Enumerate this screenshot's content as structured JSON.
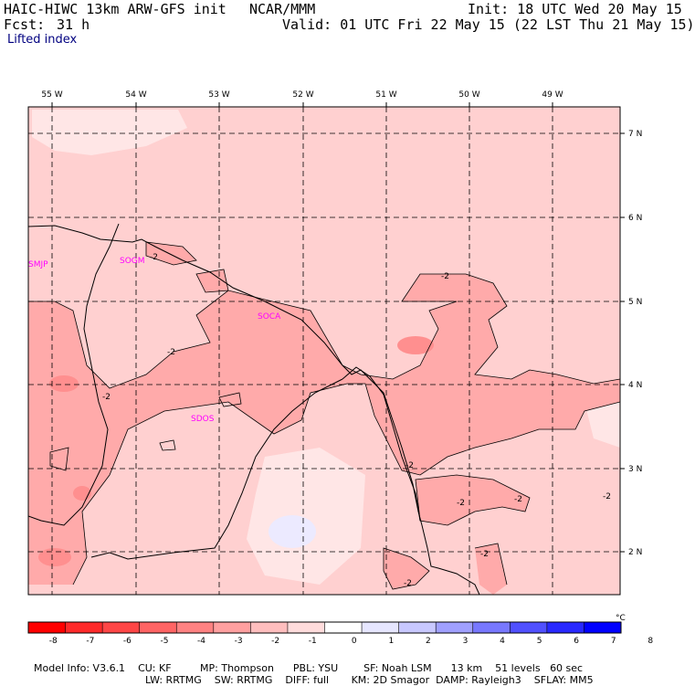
{
  "header": {
    "model": "HAIC-HIWC 13km ARW-GFS init",
    "org": "NCAR/MMM",
    "init": "Init: 18 UTC Wed 20 May 15",
    "fcst_label": "Fcst:",
    "fcst_value": "31 h",
    "valid": "Valid: 01 UTC Fri 22 May 15 (22 LST Thu 21 May 15)",
    "field": "Lifted index"
  },
  "map": {
    "lon_labels": [
      "55 W",
      "54 W",
      "53 W",
      "52 W",
      "51 W",
      "50 W",
      "49 W"
    ],
    "lat_labels": [
      "7 N",
      "6 N",
      "5 N",
      "4 N",
      "3 N",
      "2 N"
    ],
    "stations": [
      "SMJP",
      "SOGM",
      "SOCA",
      "SDOS"
    ],
    "contour_labels": [
      "-2",
      "-2",
      "-2",
      "-2",
      "-2",
      "-2",
      "-2",
      "-2",
      "-2",
      "-2"
    ]
  },
  "colorbar": {
    "ticks": [
      "-8",
      "-7",
      "-6",
      "-5",
      "-4",
      "-3",
      "-2",
      "-1",
      "0",
      "1",
      "2",
      "3",
      "4",
      "5",
      "6",
      "7",
      "8"
    ],
    "unit": "°C",
    "colors": [
      "#ff0000",
      "#ff2a2a",
      "#ff4646",
      "#ff6464",
      "#ff8282",
      "#ffa0a0",
      "#ffbebe",
      "#ffdcdc",
      "#ffffff",
      "#e6e6ff",
      "#c8c8ff",
      "#a0a0ff",
      "#7878ff",
      "#5050ff",
      "#2828ff",
      "#0000ff"
    ]
  },
  "footer": {
    "line1": [
      "Model Info: V3.6.1",
      "CU: KF",
      "MP: Thompson",
      "PBL: YSU",
      "SF: Noah LSM",
      "13 km",
      "51 levels",
      "60 sec"
    ],
    "line2": [
      "LW: RRTMG",
      "SW: RRTMG",
      "DIFF: full",
      "KM: 2D Smagor",
      "DAMP: Rayleigh3",
      "SFLAY: MM5"
    ]
  }
}
